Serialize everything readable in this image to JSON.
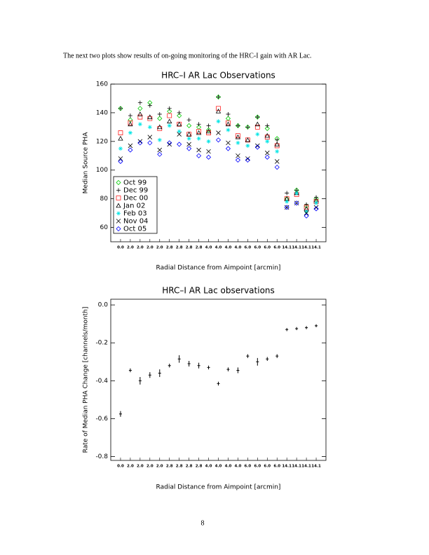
{
  "text": "The next two plots show results of on-going monitoring of the HRC-I gain with AR Lac.",
  "chart_data": [
    {
      "type": "scatter",
      "title": "HRC–I AR Lac Observations",
      "x_label": "Radial Distance from Aimpoint [arcmin]",
      "y_label": "Median Source PHA",
      "categories": [
        "0.0",
        "2.0",
        "2.0",
        "2.0",
        "2.0",
        "2.8",
        "2.8",
        "2.8",
        "2.8",
        "4.0",
        "4.0",
        "4.0",
        "4.0",
        "6.0",
        "6.0",
        "6.0",
        "6.0",
        "14.1",
        "14.1",
        "14.1",
        "14.1"
      ],
      "ylim": [
        50,
        160
      ],
      "yticks": [
        60,
        80,
        100,
        120,
        140,
        160
      ],
      "legend": "lower left",
      "series": [
        {
          "name": "Oct 99",
          "color": "#00cc00",
          "marker": "diamond",
          "values": [
            143,
            135,
            143,
            147,
            136,
            141,
            138,
            131,
            130,
            128,
            151,
            136,
            131,
            130,
            137,
            129,
            122,
            80,
            86,
            75,
            80
          ]
        },
        {
          "name": "Dec 99",
          "color": "#000000",
          "marker": "plus",
          "values": [
            143,
            138,
            147,
            145,
            139,
            143,
            140,
            135,
            132,
            131,
            151,
            139,
            131,
            130,
            137,
            131,
            121,
            84,
            86,
            76,
            81
          ]
        },
        {
          "name": "Dec 00",
          "color": "#ff2020",
          "marker": "square",
          "values": [
            126,
            133,
            137,
            136,
            129,
            138,
            132,
            125,
            127,
            126,
            143,
            133,
            124,
            121,
            130,
            123,
            117,
            80,
            83,
            74,
            78
          ]
        },
        {
          "name": "Jan 02",
          "color": "#000000",
          "marker": "triangle",
          "values": [
            122,
            132,
            139,
            137,
            130,
            134,
            132,
            125,
            126,
            127,
            141,
            132,
            123,
            121,
            132,
            124,
            118,
            80,
            84,
            73,
            79
          ]
        },
        {
          "name": "Feb 03",
          "color": "#00e5e5",
          "marker": "asterisk",
          "values": [
            115,
            126,
            132,
            130,
            121,
            131,
            127,
            122,
            122,
            120,
            134,
            128,
            119,
            117,
            125,
            120,
            113,
            78,
            84,
            71,
            77
          ]
        },
        {
          "name": "Nov 04",
          "color": "#000000",
          "marker": "cross",
          "values": [
            108,
            117,
            120,
            123,
            114,
            118,
            125,
            118,
            114,
            113,
            126,
            119,
            110,
            108,
            117,
            112,
            106,
            74,
            77,
            70,
            74
          ]
        },
        {
          "name": "Oct 05",
          "color": "#0000ff",
          "marker": "diamond",
          "values": [
            106,
            114,
            119,
            119,
            111,
            119,
            118,
            115,
            110,
            109,
            121,
            115,
            107,
            107,
            116,
            109,
            102,
            74,
            77,
            68,
            73
          ]
        }
      ]
    },
    {
      "type": "errorbar",
      "title": "HRC–I AR Lac observations",
      "x_label": "Radial Distance from Aimpoint [arcmin]",
      "y_label": "Rate of Median PHA Change [channels/month]",
      "categories": [
        "0.0",
        "2.0",
        "2.0",
        "2.0",
        "2.0",
        "2.8",
        "2.8",
        "2.8",
        "2.8",
        "4.0",
        "4.0",
        "4.0",
        "4.0",
        "6.0",
        "6.0",
        "6.0",
        "6.0",
        "14.1",
        "14.1",
        "14.1",
        "14.1"
      ],
      "ylim": [
        -0.82,
        0.03
      ],
      "yticks": [
        -0.8,
        -0.6,
        -0.4,
        -0.2,
        {
          "value": 0,
          "label": "0.0"
        }
      ],
      "color": "#000000",
      "values": [
        -0.575,
        -0.345,
        -0.4,
        -0.37,
        -0.36,
        -0.32,
        -0.285,
        -0.31,
        -0.32,
        -0.33,
        -0.415,
        -0.34,
        -0.345,
        -0.27,
        -0.3,
        -0.285,
        -0.27,
        -0.13,
        -0.125,
        -0.12,
        -0.11
      ],
      "errors": [
        0.015,
        0.01,
        0.02,
        0.015,
        0.02,
        0.01,
        0.02,
        0.015,
        0.015,
        0.01,
        0.01,
        0.01,
        0.015,
        0.01,
        0.02,
        0.01,
        0.01,
        0.008,
        0.008,
        0.008,
        0.008
      ]
    }
  ],
  "page_number": "8"
}
